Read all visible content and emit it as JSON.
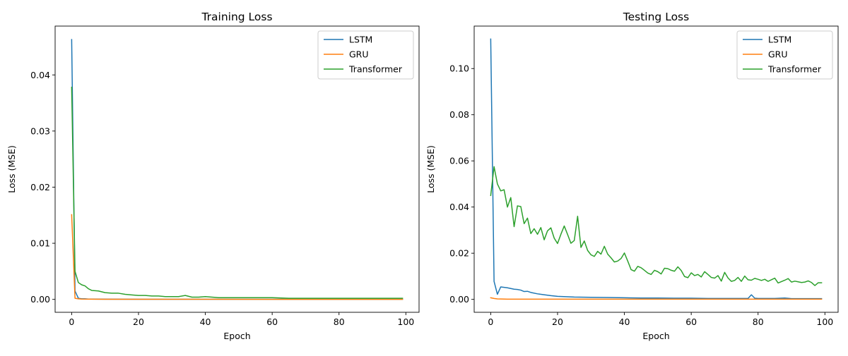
{
  "chart_data": [
    {
      "type": "line",
      "title": "Training Loss",
      "xlabel": "Epoch",
      "ylabel": "Loss (MSE)",
      "xlim": [
        -4.95,
        103.95
      ],
      "ylim": [
        -0.0023,
        0.0487
      ],
      "xticks": [
        0,
        20,
        40,
        60,
        80,
        100
      ],
      "yticks": [
        0.0,
        0.01,
        0.02,
        0.03,
        0.04
      ],
      "ytick_labels": [
        "0.00",
        "0.01",
        "0.02",
        "0.03",
        "0.04"
      ],
      "legend_position": "top-right",
      "series": [
        {
          "name": "LSTM",
          "color": "#1f77b4",
          "x": [
            0,
            1,
            2,
            3,
            4,
            5,
            10,
            20,
            40,
            60,
            80,
            99
          ],
          "y": [
            0.0463,
            0.0015,
            0.0002,
            0.0001,
            0.0001,
            5e-05,
            4e-05,
            3e-05,
            2e-05,
            2e-05,
            2e-05,
            2e-05
          ]
        },
        {
          "name": "GRU",
          "color": "#ff7f0e",
          "x": [
            0,
            1,
            2,
            3,
            5,
            10,
            20,
            40,
            60,
            80,
            99
          ],
          "y": [
            0.0151,
            0.0002,
            0.0001,
            5e-05,
            4e-05,
            3e-05,
            2e-05,
            2e-05,
            1e-05,
            1e-05,
            1e-05
          ]
        },
        {
          "name": "Transformer",
          "color": "#2ca02c",
          "x": [
            0,
            1,
            2,
            3,
            4,
            5,
            6,
            8,
            10,
            12,
            14,
            16,
            18,
            20,
            22,
            24,
            26,
            28,
            30,
            32,
            34,
            36,
            38,
            40,
            42,
            44,
            46,
            48,
            50,
            55,
            60,
            65,
            70,
            75,
            80,
            85,
            90,
            95,
            99
          ],
          "y": [
            0.0378,
            0.005,
            0.003,
            0.0026,
            0.0024,
            0.0019,
            0.0016,
            0.0015,
            0.0012,
            0.0011,
            0.0011,
            0.0009,
            0.0008,
            0.0007,
            0.0007,
            0.0006,
            0.0006,
            0.0005,
            0.0005,
            0.0005,
            0.0007,
            0.0004,
            0.0004,
            0.0005,
            0.0004,
            0.0003,
            0.0003,
            0.0003,
            0.0003,
            0.0003,
            0.0003,
            0.0002,
            0.0002,
            0.0002,
            0.0002,
            0.0002,
            0.0002,
            0.0002,
            0.0002
          ]
        }
      ]
    },
    {
      "type": "line",
      "title": "Testing Loss",
      "xlabel": "Epoch",
      "ylabel": "Loss (MSE)",
      "xlim": [
        -4.95,
        103.95
      ],
      "ylim": [
        -0.0056,
        0.1184
      ],
      "xticks": [
        0,
        20,
        40,
        60,
        80,
        100
      ],
      "yticks": [
        0.0,
        0.02,
        0.04,
        0.06,
        0.08,
        0.1
      ],
      "ytick_labels": [
        "0.00",
        "0.02",
        "0.04",
        "0.06",
        "0.08",
        "0.10"
      ],
      "legend_position": "top-right",
      "series": [
        {
          "name": "LSTM",
          "color": "#1f77b4",
          "x": [
            0,
            1,
            2,
            3,
            4,
            5,
            6,
            7,
            8,
            9,
            10,
            11,
            12,
            14,
            16,
            18,
            20,
            25,
            30,
            35,
            40,
            45,
            50,
            55,
            60,
            65,
            70,
            75,
            77,
            78,
            79,
            80,
            85,
            88,
            90,
            95,
            99
          ],
          "y": [
            0.1128,
            0.0078,
            0.0022,
            0.0054,
            0.0052,
            0.005,
            0.0047,
            0.0044,
            0.0043,
            0.004,
            0.0034,
            0.0035,
            0.003,
            0.0024,
            0.002,
            0.0016,
            0.0013,
            0.001,
            0.0009,
            0.0008,
            0.0007,
            0.0006,
            0.0006,
            0.0005,
            0.0005,
            0.0004,
            0.0004,
            0.0004,
            0.0004,
            0.002,
            0.0005,
            0.0004,
            0.0004,
            0.0006,
            0.0003,
            0.0003,
            0.0003
          ]
        },
        {
          "name": "GRU",
          "color": "#ff7f0e",
          "x": [
            0,
            1,
            2,
            5,
            20,
            40,
            60,
            80,
            99
          ],
          "y": [
            0.0007,
            0.0004,
            0.0002,
            0.0001,
            0.0001,
            0.0001,
            0.0001,
            0.0001,
            0.0001
          ]
        },
        {
          "name": "Transformer",
          "color": "#2ca02c",
          "x": [
            0,
            1,
            2,
            3,
            4,
            5,
            6,
            7,
            8,
            9,
            10,
            11,
            12,
            13,
            14,
            15,
            16,
            17,
            18,
            19,
            20,
            21,
            22,
            23,
            24,
            25,
            26,
            27,
            28,
            29,
            30,
            31,
            32,
            33,
            34,
            35,
            36,
            37,
            38,
            39,
            40,
            41,
            42,
            43,
            44,
            45,
            46,
            47,
            48,
            49,
            50,
            51,
            52,
            53,
            54,
            55,
            56,
            57,
            58,
            59,
            60,
            61,
            62,
            63,
            64,
            65,
            66,
            67,
            68,
            69,
            70,
            71,
            72,
            73,
            74,
            75,
            76,
            77,
            78,
            79,
            80,
            81,
            82,
            83,
            84,
            85,
            86,
            87,
            88,
            89,
            90,
            91,
            92,
            93,
            94,
            95,
            96,
            97,
            98,
            99
          ],
          "y": [
            0.045,
            0.0575,
            0.05,
            0.047,
            0.0475,
            0.04,
            0.0441,
            0.0315,
            0.0405,
            0.0402,
            0.0328,
            0.0352,
            0.0285,
            0.0306,
            0.0282,
            0.0311,
            0.0258,
            0.0297,
            0.031,
            0.0265,
            0.0242,
            0.0282,
            0.0318,
            0.0281,
            0.0243,
            0.0255,
            0.036,
            0.0225,
            0.0253,
            0.0212,
            0.0193,
            0.0186,
            0.0208,
            0.0196,
            0.023,
            0.0196,
            0.018,
            0.0162,
            0.0166,
            0.0177,
            0.0201,
            0.0166,
            0.0129,
            0.0122,
            0.0143,
            0.0137,
            0.0126,
            0.0114,
            0.0108,
            0.0126,
            0.012,
            0.011,
            0.0135,
            0.0133,
            0.0126,
            0.0122,
            0.0141,
            0.0125,
            0.0099,
            0.0094,
            0.0115,
            0.0103,
            0.0108,
            0.0097,
            0.012,
            0.0108,
            0.0095,
            0.0092,
            0.0103,
            0.0079,
            0.0117,
            0.0093,
            0.0078,
            0.0082,
            0.0095,
            0.0078,
            0.0101,
            0.0085,
            0.0083,
            0.0091,
            0.0087,
            0.0082,
            0.0087,
            0.0078,
            0.0085,
            0.0092,
            0.0071,
            0.0077,
            0.0083,
            0.009,
            0.0075,
            0.0079,
            0.0076,
            0.0073,
            0.0075,
            0.008,
            0.0073,
            0.006,
            0.0072,
            0.0072
          ]
        }
      ]
    }
  ]
}
